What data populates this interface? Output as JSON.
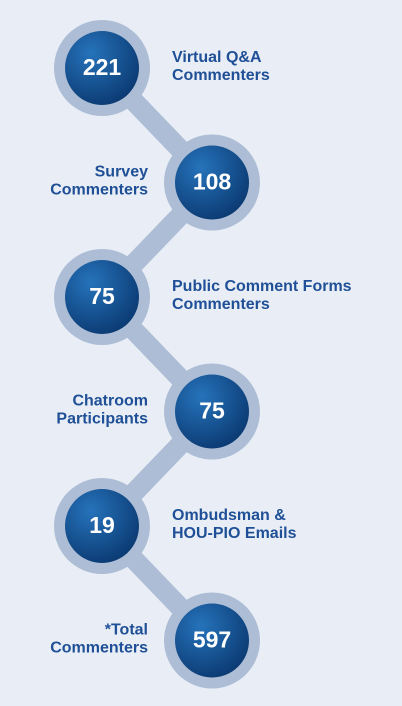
{
  "nodes": [
    {
      "value": 221,
      "label": [
        "Virtual Q&A",
        "Commenters"
      ]
    },
    {
      "value": 108,
      "label": [
        "Survey",
        "Commenters"
      ]
    },
    {
      "value": 75,
      "label": [
        "Public Comment Forms",
        "Commenters"
      ]
    },
    {
      "value": 75,
      "label": [
        "Chatroom",
        "Participants"
      ]
    },
    {
      "value": 19,
      "label": [
        "Ombudsman &",
        "HOU-PIO Emails"
      ]
    },
    {
      "value": 597,
      "label": [
        "*Total",
        "Commenters"
      ]
    }
  ]
}
